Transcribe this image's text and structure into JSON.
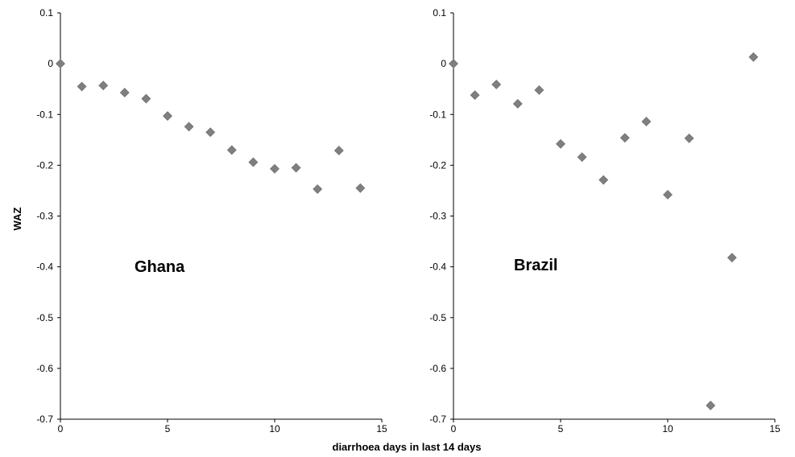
{
  "chart_data": [
    {
      "type": "scatter",
      "annotation": "Ghana",
      "xlabel": "diarrhoea days in last 14 days",
      "ylabel": "WAZ",
      "xlim": [
        0,
        15
      ],
      "ylim": [
        -0.7,
        0.1
      ],
      "x_ticks": [
        "0",
        "5",
        "10",
        "15"
      ],
      "y_ticks": [
        "0.1",
        "0",
        "-0.1",
        "-0.2",
        "-0.3",
        "-0.4",
        "-0.5",
        "-0.6",
        "-0.7"
      ],
      "marker": "diamond",
      "marker_color": "#7f7f7f",
      "grid": false,
      "points": [
        {
          "x": 0,
          "y": 0.0
        },
        {
          "x": 1,
          "y": -0.045
        },
        {
          "x": 2,
          "y": -0.043
        },
        {
          "x": 3,
          "y": -0.057
        },
        {
          "x": 4,
          "y": -0.069
        },
        {
          "x": 5,
          "y": -0.103
        },
        {
          "x": 6,
          "y": -0.124
        },
        {
          "x": 7,
          "y": -0.135
        },
        {
          "x": 8,
          "y": -0.17
        },
        {
          "x": 9,
          "y": -0.194
        },
        {
          "x": 10,
          "y": -0.207
        },
        {
          "x": 11,
          "y": -0.205
        },
        {
          "x": 12,
          "y": -0.247
        },
        {
          "x": 13,
          "y": -0.171
        },
        {
          "x": 14,
          "y": -0.245
        }
      ]
    },
    {
      "type": "scatter",
      "annotation": "Brazil",
      "xlim": [
        0,
        15
      ],
      "ylim": [
        -0.7,
        0.1
      ],
      "x_ticks": [
        "0",
        "5",
        "10",
        "15"
      ],
      "y_ticks": [
        "0.1",
        "0",
        "-0.1",
        "-0.2",
        "-0.3",
        "-0.4",
        "-0.5",
        "-0.6",
        "-0.7"
      ],
      "marker": "diamond",
      "marker_color": "#7f7f7f",
      "grid": false,
      "points": [
        {
          "x": 0,
          "y": 0.0
        },
        {
          "x": 1,
          "y": -0.062
        },
        {
          "x": 2,
          "y": -0.041
        },
        {
          "x": 3,
          "y": -0.079
        },
        {
          "x": 4,
          "y": -0.052
        },
        {
          "x": 5,
          "y": -0.158
        },
        {
          "x": 6,
          "y": -0.184
        },
        {
          "x": 7,
          "y": -0.229
        },
        {
          "x": 8,
          "y": -0.146
        },
        {
          "x": 9,
          "y": -0.114
        },
        {
          "x": 10,
          "y": -0.258
        },
        {
          "x": 11,
          "y": -0.147
        },
        {
          "x": 12,
          "y": -0.673
        },
        {
          "x": 13,
          "y": -0.382
        },
        {
          "x": 14,
          "y": 0.013
        }
      ]
    }
  ]
}
